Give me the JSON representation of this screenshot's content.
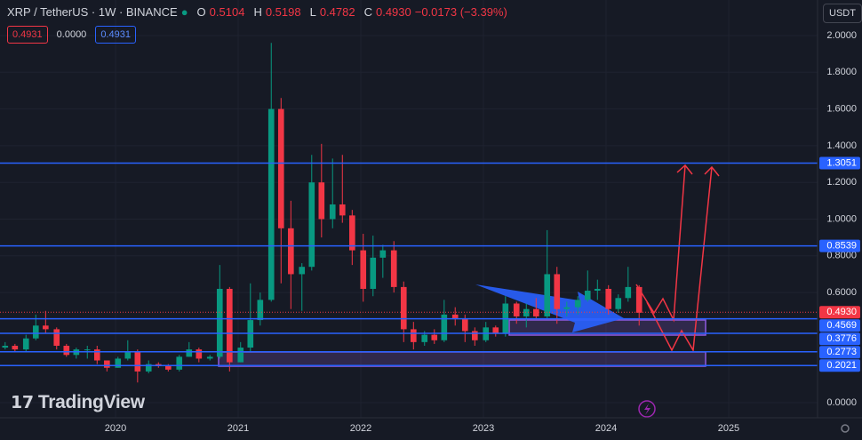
{
  "chart_data": {
    "type": "candlestick",
    "symbol": "XRP / TetherUS · 1W · BINANCE",
    "legend": {
      "o_label": "O",
      "o": "0.5104",
      "h_label": "H",
      "h": "0.5198",
      "l_label": "L",
      "l": "0.4782",
      "c_label": "C",
      "c": "0.4930",
      "change": "−0.0173 (−3.39%)"
    },
    "order_panel": {
      "sell": "0.4931",
      "spread": "0.0000",
      "buy": "0.4931"
    },
    "currency": "USDT",
    "brand": "TradingView",
    "up_color": "#089981",
    "down_color": "#f23645",
    "level_color": "#2962ff",
    "price_color": "#f23645",
    "grid": true,
    "xlim": [
      2019.058,
      2025.725
    ],
    "xticks": [
      2020,
      2021,
      2022,
      2023,
      2024,
      2025
    ],
    "ylim": [
      0,
      2.0
    ],
    "yticks": [
      {
        "value": 0,
        "label": "0.0000"
      },
      {
        "value": 0.6,
        "label": "0.6000"
      },
      {
        "value": 0.8,
        "label": "0.8000"
      },
      {
        "value": 1.0,
        "label": "1.0000"
      },
      {
        "value": 1.2,
        "label": "1.2000"
      },
      {
        "value": 1.4,
        "label": "1.4000"
      },
      {
        "value": 1.6,
        "label": "1.6000"
      },
      {
        "value": 1.8,
        "label": "1.8000"
      },
      {
        "value": 2.0,
        "label": "2.0000"
      }
    ],
    "x": [
      2019.1,
      2019.18,
      2019.27,
      2019.35,
      2019.43,
      2019.52,
      2019.6,
      2019.68,
      2019.77,
      2019.85,
      2019.93,
      2020.02,
      2020.1,
      2020.18,
      2020.27,
      2020.35,
      2020.43,
      2020.52,
      2020.6,
      2020.68,
      2020.77,
      2020.85,
      2020.93,
      2021.02,
      2021.1,
      2021.18,
      2021.27,
      2021.35,
      2021.43,
      2021.52,
      2021.6,
      2021.68,
      2021.77,
      2021.85,
      2021.93,
      2022.02,
      2022.1,
      2022.18,
      2022.27,
      2022.35,
      2022.43,
      2022.52,
      2022.6,
      2022.68,
      2022.77,
      2022.85,
      2022.93,
      2023.02,
      2023.1,
      2023.18,
      2023.27,
      2023.35,
      2023.43,
      2023.52,
      2023.6,
      2023.68,
      2023.77,
      2023.85,
      2023.93,
      2024.02,
      2024.1,
      2024.18,
      2024.27
    ],
    "open": [
      0.3,
      0.31,
      0.29,
      0.35,
      0.42,
      0.4,
      0.31,
      0.26,
      0.29,
      0.29,
      0.23,
      0.19,
      0.24,
      0.28,
      0.17,
      0.21,
      0.2,
      0.18,
      0.25,
      0.29,
      0.24,
      0.25,
      0.62,
      0.22,
      0.3,
      0.45,
      0.56,
      1.6,
      0.95,
      0.7,
      0.74,
      1.2,
      1.0,
      1.08,
      1.02,
      0.83,
      0.62,
      0.79,
      0.83,
      0.63,
      0.4,
      0.33,
      0.37,
      0.34,
      0.48,
      0.46,
      0.39,
      0.34,
      0.41,
      0.38,
      0.54,
      0.47,
      0.51,
      0.47,
      0.7,
      0.51,
      0.52,
      0.56,
      0.61,
      0.62,
      0.51,
      0.57,
      0.63
    ],
    "high": [
      0.33,
      0.32,
      0.37,
      0.48,
      0.5,
      0.41,
      0.32,
      0.3,
      0.31,
      0.31,
      0.23,
      0.25,
      0.34,
      0.29,
      0.23,
      0.22,
      0.21,
      0.26,
      0.33,
      0.3,
      0.26,
      0.75,
      0.63,
      0.33,
      0.65,
      0.6,
      1.96,
      1.66,
      1.1,
      0.76,
      1.35,
      1.41,
      1.33,
      1.35,
      1.05,
      0.92,
      0.91,
      0.86,
      0.88,
      0.66,
      0.44,
      0.39,
      0.4,
      0.56,
      0.52,
      0.48,
      0.41,
      0.44,
      0.42,
      0.58,
      0.55,
      0.54,
      0.57,
      0.94,
      0.74,
      0.55,
      0.58,
      0.72,
      0.67,
      0.64,
      0.59,
      0.74,
      0.64
    ],
    "low": [
      0.29,
      0.28,
      0.28,
      0.34,
      0.38,
      0.29,
      0.25,
      0.24,
      0.24,
      0.21,
      0.17,
      0.19,
      0.23,
      0.11,
      0.16,
      0.19,
      0.17,
      0.17,
      0.25,
      0.22,
      0.23,
      0.24,
      0.17,
      0.22,
      0.28,
      0.42,
      0.55,
      0.65,
      0.51,
      0.5,
      0.72,
      0.9,
      0.95,
      0.98,
      0.75,
      0.55,
      0.58,
      0.68,
      0.6,
      0.33,
      0.29,
      0.31,
      0.32,
      0.33,
      0.42,
      0.33,
      0.31,
      0.33,
      0.36,
      0.36,
      0.43,
      0.41,
      0.46,
      0.46,
      0.43,
      0.47,
      0.48,
      0.55,
      0.56,
      0.48,
      0.49,
      0.55,
      0.42
    ],
    "close": [
      0.31,
      0.29,
      0.35,
      0.42,
      0.4,
      0.31,
      0.26,
      0.29,
      0.29,
      0.23,
      0.19,
      0.24,
      0.28,
      0.17,
      0.21,
      0.2,
      0.18,
      0.25,
      0.29,
      0.24,
      0.25,
      0.62,
      0.22,
      0.3,
      0.45,
      0.56,
      1.6,
      0.95,
      0.7,
      0.74,
      1.2,
      1.0,
      1.08,
      1.02,
      0.83,
      0.62,
      0.79,
      0.83,
      0.63,
      0.4,
      0.33,
      0.37,
      0.34,
      0.48,
      0.46,
      0.39,
      0.34,
      0.41,
      0.38,
      0.54,
      0.47,
      0.51,
      0.47,
      0.7,
      0.51,
      0.52,
      0.56,
      0.61,
      0.62,
      0.51,
      0.57,
      0.63,
      0.49
    ],
    "levels": [
      1.3051,
      0.8539,
      0.4569,
      0.3776,
      0.2773,
      0.2021
    ],
    "last_price": {
      "value": 0.493,
      "label": "0.4930"
    }
  }
}
